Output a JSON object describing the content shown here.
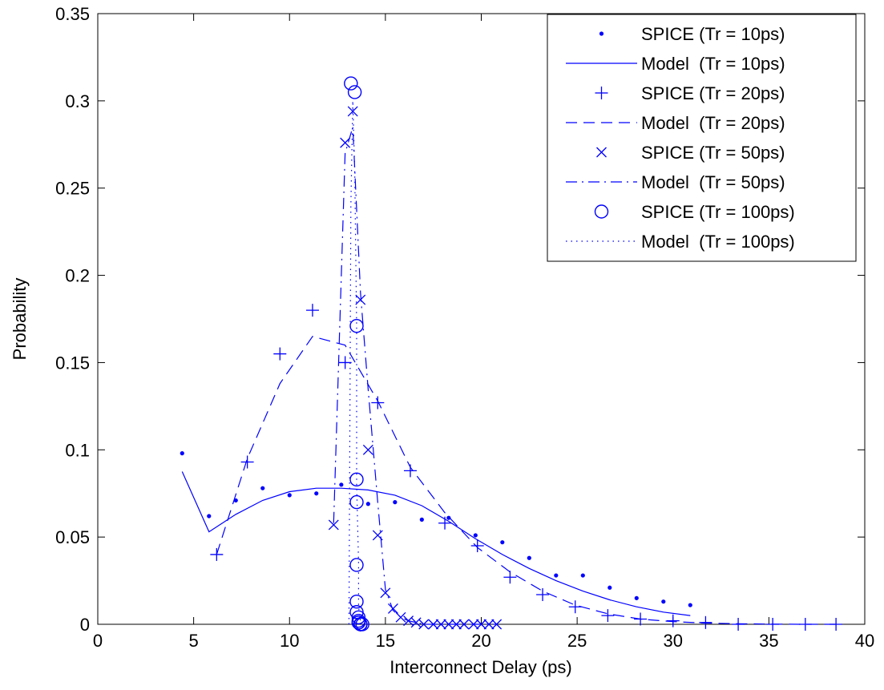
{
  "chart_data": {
    "type": "line",
    "title": "",
    "xlabel": "Interconnect Delay (ps)",
    "ylabel": "Probability",
    "xlim": [
      0,
      40
    ],
    "ylim": [
      0,
      0.35
    ],
    "xticks": [
      "0",
      "5",
      "10",
      "15",
      "20",
      "25",
      "30",
      "35",
      "40"
    ],
    "yticks": [
      "0",
      "0.05",
      "0.1",
      "0.15",
      "0.2",
      "0.25",
      "0.3",
      "0.35"
    ],
    "grid": false,
    "legend_position": "top-right",
    "series_color": "#0000ff",
    "series": [
      {
        "name": "SPICE (Tr = 10ps)",
        "marker": "dot",
        "line": "none",
        "x": [
          4.4,
          5.8,
          7.2,
          8.6,
          10.0,
          11.4,
          12.7,
          14.1,
          15.5,
          16.9,
          18.3,
          19.7,
          21.1,
          22.5,
          23.9,
          25.3,
          26.7,
          28.1,
          29.5,
          30.9
        ],
        "y": [
          0.098,
          0.062,
          0.071,
          0.078,
          0.074,
          0.075,
          0.08,
          0.069,
          0.07,
          0.06,
          0.061,
          0.051,
          0.047,
          0.038,
          0.028,
          0.028,
          0.021,
          0.015,
          0.013,
          0.011
        ]
      },
      {
        "name": "Model  (Tr = 10ps)",
        "marker": "none",
        "line": "solid",
        "x": [
          4.4,
          5.8,
          7.2,
          8.6,
          10.0,
          11.4,
          12.7,
          14.1,
          15.5,
          16.9,
          18.3,
          19.7,
          21.1,
          22.5,
          23.9,
          25.3,
          26.7,
          28.1,
          29.5,
          30.9
        ],
        "y": [
          0.0875,
          0.053,
          0.063,
          0.071,
          0.076,
          0.078,
          0.078,
          0.077,
          0.074,
          0.068,
          0.059,
          0.049,
          0.04,
          0.032,
          0.025,
          0.019,
          0.014,
          0.01,
          0.007,
          0.005
        ]
      },
      {
        "name": "SPICE (Tr = 20ps)",
        "marker": "plus",
        "line": "none",
        "x": [
          6.2,
          7.8,
          9.5,
          11.2,
          12.9,
          14.6,
          16.3,
          18.1,
          19.8,
          21.5,
          23.2,
          24.9,
          26.6,
          28.3,
          30.0,
          31.7,
          33.4,
          35.2,
          36.9,
          38.5
        ],
        "y": [
          0.04,
          0.093,
          0.155,
          0.18,
          0.15,
          0.127,
          0.088,
          0.058,
          0.045,
          0.027,
          0.017,
          0.01,
          0.005,
          0.003,
          0.002,
          0.001,
          0.0,
          0.0,
          0.0,
          0.0
        ]
      },
      {
        "name": "Model  (Tr = 20ps)",
        "marker": "none",
        "line": "dashed",
        "x": [
          6.2,
          7.8,
          9.5,
          11.2,
          12.9,
          14.6,
          16.3,
          18.1,
          19.8,
          21.5,
          23.2,
          24.9,
          26.6,
          28.3,
          30.0,
          31.7,
          33.4,
          35.2,
          36.9,
          38.5
        ],
        "y": [
          0.04,
          0.095,
          0.138,
          0.165,
          0.16,
          0.128,
          0.09,
          0.064,
          0.044,
          0.03,
          0.019,
          0.011,
          0.006,
          0.003,
          0.0015,
          0.0007,
          0.0003,
          0.0001,
          0.0,
          0.0
        ]
      },
      {
        "name": "SPICE (Tr = 50ps)",
        "marker": "x",
        "line": "none",
        "x": [
          12.3,
          12.9,
          13.3,
          13.7,
          14.1,
          14.6,
          15.0,
          15.4,
          15.8,
          16.2,
          16.6,
          17.0,
          17.5,
          17.9,
          18.3,
          18.7,
          19.1,
          19.6,
          20.0,
          20.4,
          20.8
        ],
        "y": [
          0.057,
          0.276,
          0.294,
          0.186,
          0.1,
          0.051,
          0.018,
          0.009,
          0.004,
          0.002,
          0.001,
          0.0,
          0.0,
          0.0,
          0.0,
          0.0,
          0.0,
          0.0,
          0.0,
          0.0,
          0.0
        ]
      },
      {
        "name": "Model  (Tr = 50ps)",
        "marker": "none",
        "line": "dashdot",
        "x": [
          12.3,
          12.9,
          13.3,
          13.7,
          14.1,
          14.6,
          15.0,
          15.4,
          15.8,
          16.2,
          16.6,
          17.0,
          17.5,
          17.9,
          18.3,
          18.7,
          19.1,
          19.6,
          20.0,
          20.4,
          20.8
        ],
        "y": [
          0.058,
          0.27,
          0.285,
          0.19,
          0.135,
          0.07,
          0.02,
          0.008,
          0.004,
          0.002,
          0.001,
          0.0,
          0.0,
          0.0,
          0.0,
          0.0,
          0.0,
          0.0,
          0.0,
          0.0,
          0.0
        ]
      },
      {
        "name": "SPICE (Tr = 100ps)",
        "marker": "circle",
        "line": "none",
        "x": [
          13.2,
          13.4,
          13.5,
          13.5,
          13.5,
          13.5,
          13.5,
          13.5,
          13.6,
          13.6,
          13.6,
          13.6,
          13.7,
          13.7,
          13.7,
          13.7,
          13.8
        ],
        "y": [
          0.31,
          0.305,
          0.171,
          0.083,
          0.07,
          0.034,
          0.013,
          0.007,
          0.004,
          0.002,
          0.001,
          0.001,
          0.0,
          0.0,
          0.0,
          0.0,
          0.0
        ]
      },
      {
        "name": "Model  (Tr = 100ps)",
        "marker": "none",
        "line": "dotted",
        "x": [
          13.1,
          13.2,
          13.3,
          13.4,
          13.5,
          13.5,
          13.6,
          13.6,
          13.7,
          13.8
        ],
        "y": [
          0.0,
          0.24,
          0.3,
          0.26,
          0.17,
          0.08,
          0.035,
          0.01,
          0.002,
          0.0
        ]
      }
    ]
  }
}
